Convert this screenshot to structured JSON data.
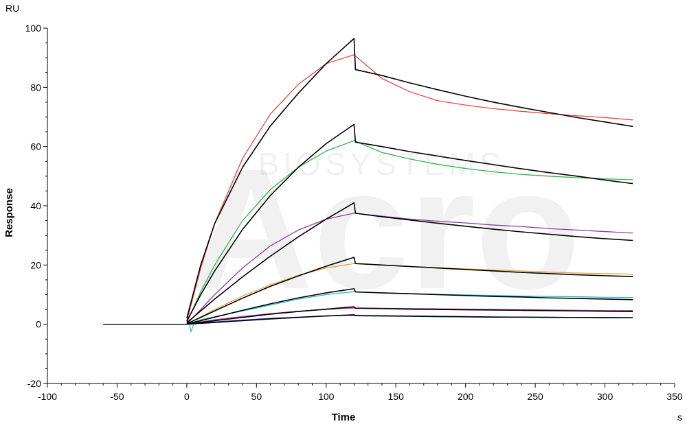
{
  "chart_data": {
    "type": "line",
    "title": "",
    "xlabel": "Time",
    "ylabel": "Response",
    "x_unit": "s",
    "y_unit": "RU",
    "xlim": [
      -100,
      350
    ],
    "ylim": [
      -20,
      100
    ],
    "x_ticks": [
      -100,
      -50,
      0,
      50,
      100,
      150,
      200,
      250,
      300,
      350
    ],
    "y_ticks": [
      -20,
      0,
      20,
      40,
      60,
      80,
      100
    ],
    "grid": false,
    "legend": "none",
    "watermark": {
      "main": "Acro",
      "sub": "BIOSYSTEMS"
    },
    "series": [
      {
        "color": "#e8473a",
        "kind": "measured",
        "x": [
          0,
          10,
          20,
          40,
          60,
          80,
          100,
          120,
          140,
          160,
          180,
          200,
          220,
          240,
          260,
          280,
          300,
          320
        ],
        "values": [
          1,
          19,
          34,
          56,
          71,
          81,
          88,
          91,
          83,
          78.5,
          75.5,
          74,
          72.8,
          71.9,
          71.1,
          70.4,
          69.8,
          69
        ]
      },
      {
        "color": "#000000",
        "kind": "fit",
        "x": [
          0,
          10,
          20,
          40,
          60,
          80,
          100,
          120,
          121,
          140,
          160,
          180,
          200,
          220,
          240,
          260,
          280,
          300,
          320
        ],
        "values": [
          2,
          20,
          34,
          53,
          67,
          78,
          88,
          96.5,
          86,
          84,
          81.5,
          79.2,
          77,
          75,
          73.2,
          71.5,
          69.8,
          68.3,
          66.8
        ]
      },
      {
        "color": "#2db34a",
        "kind": "measured",
        "x": [
          0,
          10,
          20,
          40,
          60,
          80,
          100,
          120,
          140,
          160,
          180,
          200,
          220,
          240,
          260,
          280,
          300,
          320
        ],
        "values": [
          0.5,
          11,
          20,
          35,
          45.5,
          53,
          58.5,
          62,
          58,
          55.8,
          54,
          52.6,
          51.5,
          50.6,
          50,
          49.5,
          49.1,
          48.8
        ]
      },
      {
        "color": "#000000",
        "kind": "fit",
        "x": [
          0,
          10,
          20,
          40,
          60,
          80,
          100,
          120,
          121,
          140,
          160,
          180,
          200,
          220,
          240,
          260,
          280,
          300,
          320
        ],
        "values": [
          1,
          10,
          18,
          32,
          43.5,
          53,
          61,
          67.5,
          61.5,
          60,
          58.3,
          56.8,
          55.3,
          53.9,
          52.5,
          51.2,
          50,
          48.7,
          47.5
        ]
      },
      {
        "color": "#8b3aa8",
        "kind": "measured",
        "x": [
          0,
          10,
          20,
          40,
          60,
          80,
          100,
          120,
          140,
          160,
          180,
          200,
          220,
          240,
          260,
          280,
          300,
          320
        ],
        "values": [
          0,
          5,
          10,
          19,
          26.5,
          31.8,
          35.5,
          37.5,
          36.5,
          35.5,
          34.8,
          34.2,
          33.5,
          33,
          32.3,
          31.8,
          31.3,
          30.8
        ]
      },
      {
        "color": "#000000",
        "kind": "fit",
        "x": [
          0,
          10,
          20,
          40,
          60,
          80,
          100,
          120,
          121,
          140,
          160,
          180,
          200,
          220,
          240,
          260,
          280,
          300,
          320
        ],
        "values": [
          0.5,
          4.5,
          8.5,
          16,
          23,
          29.5,
          35.5,
          41,
          37.5,
          36.3,
          35.2,
          34.1,
          33.1,
          32.1,
          31.2,
          30.4,
          29.6,
          28.9,
          28.3
        ]
      },
      {
        "color": "#e8a23a",
        "kind": "measured",
        "x": [
          0,
          10,
          20,
          40,
          60,
          80,
          100,
          120,
          140,
          160,
          180,
          200,
          220,
          240,
          260,
          280,
          300,
          320
        ],
        "values": [
          0,
          2.5,
          5,
          9.5,
          13.3,
          16.5,
          19,
          20.5,
          20,
          19.5,
          19.1,
          18.7,
          18.3,
          18,
          17.6,
          17.3,
          17.1,
          16.9
        ]
      },
      {
        "color": "#000000",
        "kind": "fit",
        "x": [
          0,
          10,
          20,
          40,
          60,
          80,
          100,
          120,
          121,
          140,
          160,
          180,
          200,
          220,
          240,
          260,
          280,
          300,
          320
        ],
        "values": [
          0.2,
          2.3,
          4.5,
          8.8,
          12.8,
          16.3,
          19.6,
          22.6,
          20.5,
          20,
          19.5,
          19,
          18.5,
          18,
          17.5,
          17.1,
          16.7,
          16.4,
          16.1
        ]
      },
      {
        "color": "#1fb8c8",
        "kind": "measured",
        "x": [
          0,
          10,
          20,
          40,
          60,
          80,
          100,
          120,
          140,
          160,
          180,
          200,
          220,
          240,
          260,
          280,
          300,
          320
        ],
        "values": [
          0,
          1.5,
          2.5,
          4.5,
          6.5,
          8.5,
          10,
          11,
          10.6,
          10.3,
          10.1,
          9.9,
          9.7,
          9.5,
          9.4,
          9.3,
          9.1,
          9
        ]
      },
      {
        "color": "#000000",
        "kind": "fit",
        "x": [
          0,
          10,
          20,
          40,
          60,
          80,
          100,
          120,
          121,
          140,
          160,
          180,
          200,
          220,
          240,
          260,
          280,
          300,
          320
        ],
        "values": [
          0.1,
          1.2,
          2.4,
          4.7,
          6.9,
          8.9,
          10.6,
          12,
          10.9,
          10.6,
          10.3,
          10,
          9.7,
          9.4,
          9.2,
          8.9,
          8.7,
          8.5,
          8.3
        ]
      },
      {
        "color": "#b0309a",
        "kind": "measured",
        "x": [
          0,
          10,
          20,
          40,
          60,
          80,
          100,
          120,
          140,
          160,
          180,
          200,
          220,
          240,
          260,
          280,
          300,
          320
        ],
        "values": [
          0,
          0.8,
          1.5,
          2.6,
          3.6,
          4.4,
          5,
          5.5,
          5.4,
          5.3,
          5.2,
          5.1,
          5,
          4.9,
          4.8,
          4.7,
          4.6,
          4.6
        ]
      },
      {
        "color": "#000000",
        "kind": "fit",
        "x": [
          0,
          10,
          20,
          40,
          60,
          80,
          100,
          120,
          121,
          140,
          160,
          180,
          200,
          220,
          240,
          260,
          280,
          300,
          320
        ],
        "values": [
          0,
          0.6,
          1.2,
          2.3,
          3.4,
          4.3,
          5.1,
          5.9,
          5.4,
          5.3,
          5.1,
          5,
          4.9,
          4.8,
          4.7,
          4.6,
          4.5,
          4.4,
          4.3
        ]
      },
      {
        "color": "#2a36c8",
        "kind": "measured",
        "x": [
          0,
          10,
          20,
          40,
          60,
          80,
          100,
          120,
          140,
          160,
          180,
          200,
          220,
          240,
          260,
          280,
          300,
          320
        ],
        "values": [
          0,
          0.4,
          0.8,
          1.4,
          2,
          2.4,
          2.8,
          3,
          2.9,
          2.8,
          2.7,
          2.6,
          2.5,
          2.4,
          2.4,
          2.3,
          2.3,
          2.2
        ]
      },
      {
        "color": "#000000",
        "kind": "fit",
        "x": [
          0,
          10,
          20,
          40,
          60,
          80,
          100,
          120,
          121,
          140,
          160,
          180,
          200,
          220,
          240,
          260,
          280,
          300,
          320
        ],
        "values": [
          0,
          0.3,
          0.6,
          1.2,
          1.8,
          2.3,
          2.8,
          3.2,
          2.9,
          2.8,
          2.7,
          2.6,
          2.5,
          2.4,
          2.4,
          2.3,
          2.3,
          2.2,
          2.2
        ]
      }
    ],
    "baseline": {
      "x": [
        -60,
        0
      ],
      "values": [
        0,
        0
      ],
      "color": "#000000"
    },
    "injection_spike": {
      "color": "#1fb8c8",
      "x": [
        2,
        3,
        5
      ],
      "values": [
        0,
        -2.5,
        0
      ]
    }
  }
}
